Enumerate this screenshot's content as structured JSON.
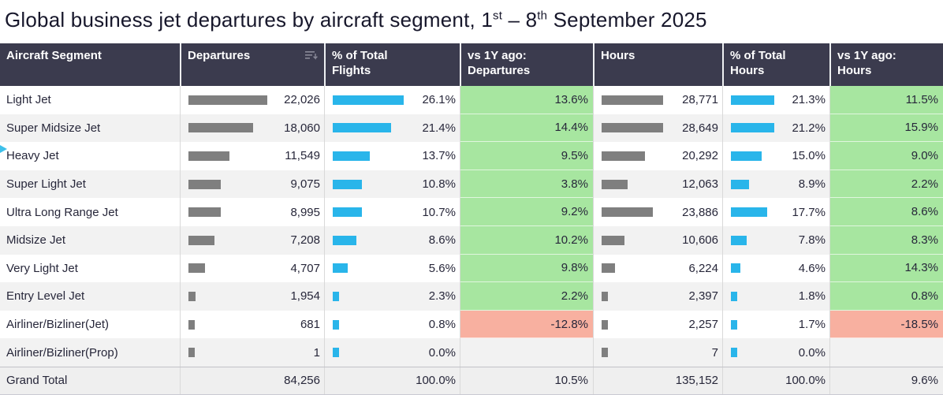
{
  "title": {
    "prefix": "Global business jet departures by aircraft segment, 1",
    "sup1": "st",
    "mid": " – 8",
    "sup2": "th",
    "suffix": " September 2025"
  },
  "columns": [
    {
      "line1": "Aircraft Segment",
      "line2": ""
    },
    {
      "line1": "Departures",
      "line2": ""
    },
    {
      "line1": "% of Total",
      "line2": "Flights"
    },
    {
      "line1": "vs 1Y ago:",
      "line2": "Departures"
    },
    {
      "line1": "Hours",
      "line2": ""
    },
    {
      "line1": "% of Total",
      "line2": "Hours"
    },
    {
      "line1": "vs 1Y ago:",
      "line2": "Hours"
    }
  ],
  "icons": {
    "departures_sort": "sort-descending-icon"
  },
  "colors": {
    "header_bg": "#3b3b4e",
    "bar_gray": "#7f7f7f",
    "bar_blue": "#29b5ea",
    "positive_bg": "#a7e6a0",
    "negative_bg": "#f8b0a0"
  },
  "chart_data": {
    "type": "table",
    "title": "Global business jet departures by aircraft segment, 1st – 8th September 2025",
    "columns": [
      "Aircraft Segment",
      "Departures",
      "% of Total Flights",
      "vs 1Y ago: Departures",
      "Hours",
      "% of Total Hours",
      "vs 1Y ago: Hours"
    ],
    "rows": [
      {
        "segment": "Light Jet",
        "dep": 22026,
        "dep_label": "22,026",
        "flt_pct": 26.1,
        "flt_label": "26.1%",
        "vs_dep": 13.6,
        "vs_dep_label": "13.6%",
        "hours": 28771,
        "hours_label": "28,771",
        "hrs_pct": 21.3,
        "hrs_pct_label": "21.3%",
        "vs_hrs": 11.5,
        "vs_hrs_label": "11.5%"
      },
      {
        "segment": "Super Midsize Jet",
        "dep": 18060,
        "dep_label": "18,060",
        "flt_pct": 21.4,
        "flt_label": "21.4%",
        "vs_dep": 14.4,
        "vs_dep_label": "14.4%",
        "hours": 28649,
        "hours_label": "28,649",
        "hrs_pct": 21.2,
        "hrs_pct_label": "21.2%",
        "vs_hrs": 15.9,
        "vs_hrs_label": "15.9%"
      },
      {
        "segment": "Heavy Jet",
        "dep": 11549,
        "dep_label": "11,549",
        "flt_pct": 13.7,
        "flt_label": "13.7%",
        "vs_dep": 9.5,
        "vs_dep_label": "9.5%",
        "hours": 20292,
        "hours_label": "20,292",
        "hrs_pct": 15.0,
        "hrs_pct_label": "15.0%",
        "vs_hrs": 9.0,
        "vs_hrs_label": "9.0%"
      },
      {
        "segment": "Super Light Jet",
        "dep": 9075,
        "dep_label": "9,075",
        "flt_pct": 10.8,
        "flt_label": "10.8%",
        "vs_dep": 3.8,
        "vs_dep_label": "3.8%",
        "hours": 12063,
        "hours_label": "12,063",
        "hrs_pct": 8.9,
        "hrs_pct_label": "8.9%",
        "vs_hrs": 2.2,
        "vs_hrs_label": "2.2%"
      },
      {
        "segment": "Ultra Long Range Jet",
        "dep": 8995,
        "dep_label": "8,995",
        "flt_pct": 10.7,
        "flt_label": "10.7%",
        "vs_dep": 9.2,
        "vs_dep_label": "9.2%",
        "hours": 23886,
        "hours_label": "23,886",
        "hrs_pct": 17.7,
        "hrs_pct_label": "17.7%",
        "vs_hrs": 8.6,
        "vs_hrs_label": "8.6%"
      },
      {
        "segment": "Midsize Jet",
        "dep": 7208,
        "dep_label": "7,208",
        "flt_pct": 8.6,
        "flt_label": "8.6%",
        "vs_dep": 10.2,
        "vs_dep_label": "10.2%",
        "hours": 10606,
        "hours_label": "10,606",
        "hrs_pct": 7.8,
        "hrs_pct_label": "7.8%",
        "vs_hrs": 8.3,
        "vs_hrs_label": "8.3%"
      },
      {
        "segment": "Very Light Jet",
        "dep": 4707,
        "dep_label": "4,707",
        "flt_pct": 5.6,
        "flt_label": "5.6%",
        "vs_dep": 9.8,
        "vs_dep_label": "9.8%",
        "hours": 6224,
        "hours_label": "6,224",
        "hrs_pct": 4.6,
        "hrs_pct_label": "4.6%",
        "vs_hrs": 14.3,
        "vs_hrs_label": "14.3%"
      },
      {
        "segment": "Entry Level Jet",
        "dep": 1954,
        "dep_label": "1,954",
        "flt_pct": 2.3,
        "flt_label": "2.3%",
        "vs_dep": 2.2,
        "vs_dep_label": "2.2%",
        "hours": 2397,
        "hours_label": "2,397",
        "hrs_pct": 1.8,
        "hrs_pct_label": "1.8%",
        "vs_hrs": 0.8,
        "vs_hrs_label": "0.8%"
      },
      {
        "segment": "Airliner/Bizliner(Jet)",
        "dep": 681,
        "dep_label": "681",
        "flt_pct": 0.8,
        "flt_label": "0.8%",
        "vs_dep": -12.8,
        "vs_dep_label": "-12.8%",
        "hours": 2257,
        "hours_label": "2,257",
        "hrs_pct": 1.7,
        "hrs_pct_label": "1.7%",
        "vs_hrs": -18.5,
        "vs_hrs_label": "-18.5%"
      },
      {
        "segment": "Airliner/Bizliner(Prop)",
        "dep": 1,
        "dep_label": "1",
        "flt_pct": 0.0,
        "flt_label": "0.0%",
        "vs_dep": null,
        "vs_dep_label": "",
        "hours": 7,
        "hours_label": "7",
        "hrs_pct": 0.0,
        "hrs_pct_label": "0.0%",
        "vs_hrs": null,
        "vs_hrs_label": ""
      }
    ],
    "grand_total": {
      "segment": "Grand Total",
      "dep_label": "84,256",
      "flt_label": "100.0%",
      "vs_dep_label": "10.5%",
      "hours_label": "135,152",
      "hrs_pct_label": "100.0%",
      "vs_hrs_label": "9.6%"
    }
  }
}
